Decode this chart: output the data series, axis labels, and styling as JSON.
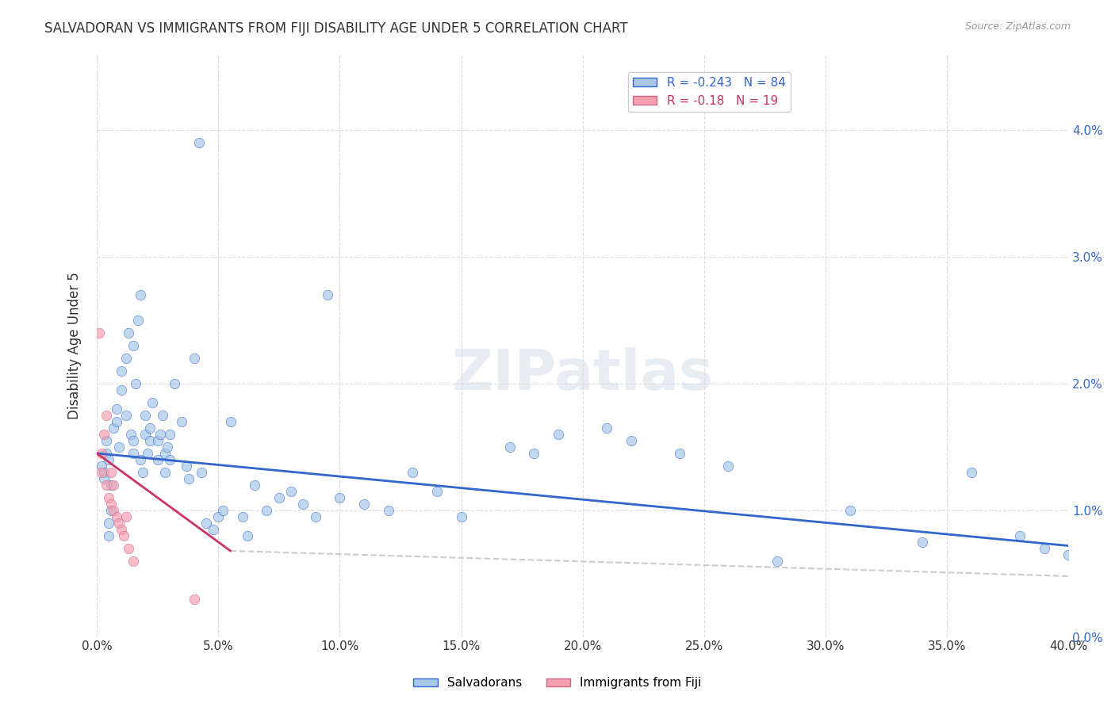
{
  "title": "SALVADORAN VS IMMIGRANTS FROM FIJI DISABILITY AGE UNDER 5 CORRELATION CHART",
  "source": "Source: ZipAtlas.com",
  "ylabel": "Disability Age Under 5",
  "xlabel": "",
  "legend_label1": "Salvadorans",
  "legend_label2": "Immigrants from Fiji",
  "R1": -0.243,
  "N1": 84,
  "R2": -0.18,
  "N2": 19,
  "color1": "#a8c8e8",
  "color2": "#f4a0b0",
  "line_color1": "#3366cc",
  "line_color2": "#cc3366",
  "trend_dashed_color": "#cccccc",
  "xlim": [
    0,
    0.4
  ],
  "ylim": [
    0,
    0.046
  ],
  "xticks": [
    0.0,
    0.05,
    0.1,
    0.15,
    0.2,
    0.25,
    0.3,
    0.35,
    0.4
  ],
  "yticks_left": [
    0.0,
    0.01,
    0.02,
    0.03,
    0.04
  ],
  "yticks_right": [
    0.0,
    0.01,
    0.02,
    0.03,
    0.04
  ],
  "grid_color": "#dddddd",
  "bg_color": "#ffffff",
  "watermark": "ZIPatlas",
  "salvadorans_x": [
    0.002,
    0.003,
    0.003,
    0.004,
    0.004,
    0.005,
    0.005,
    0.005,
    0.006,
    0.006,
    0.007,
    0.008,
    0.008,
    0.009,
    0.01,
    0.01,
    0.012,
    0.012,
    0.013,
    0.014,
    0.015,
    0.015,
    0.015,
    0.016,
    0.017,
    0.018,
    0.018,
    0.019,
    0.02,
    0.02,
    0.021,
    0.022,
    0.022,
    0.023,
    0.025,
    0.025,
    0.026,
    0.027,
    0.028,
    0.028,
    0.029,
    0.03,
    0.03,
    0.032,
    0.035,
    0.037,
    0.038,
    0.04,
    0.042,
    0.043,
    0.045,
    0.048,
    0.05,
    0.052,
    0.055,
    0.06,
    0.062,
    0.065,
    0.07,
    0.075,
    0.08,
    0.085,
    0.09,
    0.095,
    0.1,
    0.11,
    0.12,
    0.13,
    0.14,
    0.15,
    0.17,
    0.18,
    0.19,
    0.21,
    0.22,
    0.24,
    0.26,
    0.28,
    0.31,
    0.34,
    0.36,
    0.38,
    0.39,
    0.4
  ],
  "salvadorans_y": [
    0.0135,
    0.013,
    0.0125,
    0.0145,
    0.0155,
    0.008,
    0.009,
    0.014,
    0.01,
    0.012,
    0.0165,
    0.017,
    0.018,
    0.015,
    0.021,
    0.0195,
    0.0175,
    0.022,
    0.024,
    0.016,
    0.023,
    0.0155,
    0.0145,
    0.02,
    0.025,
    0.027,
    0.014,
    0.013,
    0.016,
    0.0175,
    0.0145,
    0.0155,
    0.0165,
    0.0185,
    0.014,
    0.0155,
    0.016,
    0.0175,
    0.013,
    0.0145,
    0.015,
    0.014,
    0.016,
    0.02,
    0.017,
    0.0135,
    0.0125,
    0.022,
    0.039,
    0.013,
    0.009,
    0.0085,
    0.0095,
    0.01,
    0.017,
    0.0095,
    0.008,
    0.012,
    0.01,
    0.011,
    0.0115,
    0.0105,
    0.0095,
    0.027,
    0.011,
    0.0105,
    0.01,
    0.013,
    0.0115,
    0.0095,
    0.015,
    0.0145,
    0.016,
    0.0165,
    0.0155,
    0.0145,
    0.0135,
    0.006,
    0.01,
    0.0075,
    0.013,
    0.008,
    0.007,
    0.0065
  ],
  "fiji_x": [
    0.001,
    0.002,
    0.002,
    0.003,
    0.004,
    0.004,
    0.005,
    0.006,
    0.006,
    0.007,
    0.007,
    0.008,
    0.009,
    0.01,
    0.011,
    0.012,
    0.013,
    0.015,
    0.04
  ],
  "fiji_y": [
    0.024,
    0.0145,
    0.013,
    0.016,
    0.0175,
    0.012,
    0.011,
    0.013,
    0.0105,
    0.01,
    0.012,
    0.0095,
    0.009,
    0.0085,
    0.008,
    0.0095,
    0.007,
    0.006,
    0.003
  ],
  "blue_trend_x0": 0.0,
  "blue_trend_y0": 0.0145,
  "blue_trend_x1": 0.4,
  "blue_trend_y1": 0.0072,
  "pink_trend_x0": 0.0,
  "pink_trend_y0": 0.0145,
  "pink_trend_x1": 0.055,
  "pink_trend_y1": 0.0068
}
